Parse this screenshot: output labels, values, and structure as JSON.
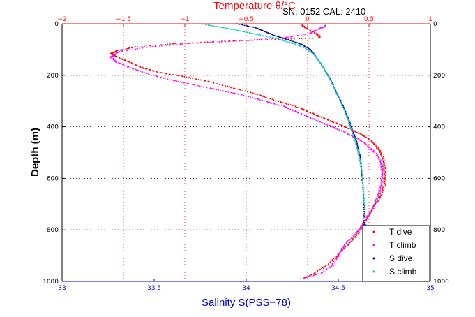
{
  "chart_data": {
    "type": "scatter",
    "top_axis_label": "Temperature θ/°C",
    "instrument_label": "SN: 0152  CAL: 2410",
    "xlabel_bottom": "Salinity S(PSS−78)",
    "ylabel": "Depth (m)",
    "temperature_axis": {
      "range": [
        -2,
        1
      ],
      "ticks": [
        "−2",
        "−1.5",
        "−1",
        "−0.5",
        "0",
        "0.5",
        "1"
      ],
      "tick_values": [
        -2,
        -1.5,
        -1,
        -0.5,
        0,
        0.5,
        1
      ]
    },
    "salinity_axis": {
      "range": [
        33,
        35
      ],
      "ticks": [
        "33",
        "33.5",
        "34",
        "34.5",
        "35"
      ],
      "tick_values": [
        33,
        33.5,
        34,
        34.5,
        35
      ]
    },
    "depth_axis": {
      "range": [
        0,
        1000
      ],
      "reversed": true,
      "ticks": [
        "0",
        "200",
        "400",
        "600",
        "800",
        "1000"
      ],
      "tick_values": [
        0,
        200,
        400,
        600,
        800,
        1000
      ]
    },
    "grid": true,
    "legend_position": "bottom-right",
    "series": [
      {
        "name": "T dive",
        "variable": "temperature",
        "color": "#ff0000",
        "points": [
          [
            -0.05,
            5
          ],
          [
            0.0,
            20
          ],
          [
            0.08,
            40
          ],
          [
            0.1,
            55
          ],
          [
            -0.3,
            62
          ],
          [
            -0.7,
            68
          ],
          [
            -1.1,
            78
          ],
          [
            -1.4,
            90
          ],
          [
            -1.55,
            105
          ],
          [
            -1.6,
            115
          ],
          [
            -1.55,
            130
          ],
          [
            -1.45,
            150
          ],
          [
            -1.35,
            170
          ],
          [
            -1.2,
            190
          ],
          [
            -1.0,
            205
          ],
          [
            -0.8,
            225
          ],
          [
            -0.6,
            250
          ],
          [
            -0.4,
            275
          ],
          [
            -0.25,
            300
          ],
          [
            -0.1,
            320
          ],
          [
            0.0,
            340
          ],
          [
            0.1,
            360
          ],
          [
            0.2,
            380
          ],
          [
            0.3,
            400
          ],
          [
            0.4,
            420
          ],
          [
            0.5,
            445
          ],
          [
            0.55,
            470
          ],
          [
            0.6,
            500
          ],
          [
            0.62,
            540
          ],
          [
            0.63,
            580
          ],
          [
            0.63,
            620
          ],
          [
            0.6,
            660
          ],
          [
            0.55,
            700
          ],
          [
            0.5,
            740
          ],
          [
            0.45,
            780
          ],
          [
            0.4,
            820
          ],
          [
            0.32,
            860
          ],
          [
            0.25,
            900
          ],
          [
            0.15,
            940
          ],
          [
            0.05,
            970
          ],
          [
            -0.05,
            990
          ]
        ]
      },
      {
        "name": "T climb",
        "variable": "temperature",
        "color": "#ff00ff",
        "points": [
          [
            -0.05,
            990
          ],
          [
            0.1,
            970
          ],
          [
            0.2,
            940
          ],
          [
            0.25,
            900
          ],
          [
            0.3,
            860
          ],
          [
            0.38,
            820
          ],
          [
            0.45,
            780
          ],
          [
            0.5,
            740
          ],
          [
            0.55,
            700
          ],
          [
            0.58,
            660
          ],
          [
            0.6,
            620
          ],
          [
            0.61,
            580
          ],
          [
            0.6,
            540
          ],
          [
            0.55,
            500
          ],
          [
            0.48,
            470
          ],
          [
            0.4,
            445
          ],
          [
            0.3,
            420
          ],
          [
            0.2,
            400
          ],
          [
            0.1,
            380
          ],
          [
            0.0,
            360
          ],
          [
            -0.1,
            340
          ],
          [
            -0.2,
            320
          ],
          [
            -0.35,
            300
          ],
          [
            -0.5,
            280
          ],
          [
            -0.7,
            260
          ],
          [
            -0.9,
            240
          ],
          [
            -1.1,
            220
          ],
          [
            -1.3,
            195
          ],
          [
            -1.45,
            170
          ],
          [
            -1.55,
            150
          ],
          [
            -1.6,
            130
          ],
          [
            -1.55,
            110
          ],
          [
            -1.3,
            90
          ],
          [
            -0.9,
            75
          ],
          [
            -0.5,
            65
          ],
          [
            -0.2,
            55
          ],
          [
            0.0,
            40
          ],
          [
            0.1,
            20
          ],
          [
            0.15,
            5
          ]
        ]
      },
      {
        "name": "S dive",
        "variable": "salinity",
        "color": "#000099",
        "points": [
          [
            33.95,
            0
          ],
          [
            34.05,
            15
          ],
          [
            34.1,
            30
          ],
          [
            34.15,
            45
          ],
          [
            34.22,
            60
          ],
          [
            34.3,
            80
          ],
          [
            34.35,
            100
          ],
          [
            34.38,
            130
          ],
          [
            34.42,
            170
          ],
          [
            34.46,
            220
          ],
          [
            34.5,
            280
          ],
          [
            34.54,
            340
          ],
          [
            34.57,
            400
          ],
          [
            34.6,
            460
          ],
          [
            34.62,
            520
          ],
          [
            34.63,
            600
          ],
          [
            34.64,
            700
          ],
          [
            34.64,
            800
          ],
          [
            34.64,
            900
          ],
          [
            34.64,
            1000
          ]
        ]
      },
      {
        "name": "S climb",
        "variable": "salinity",
        "color": "#00cccc",
        "points": [
          [
            33.75,
            0
          ],
          [
            33.85,
            12
          ],
          [
            33.95,
            25
          ],
          [
            34.05,
            40
          ],
          [
            34.15,
            55
          ],
          [
            34.25,
            75
          ],
          [
            34.32,
            95
          ],
          [
            34.37,
            120
          ],
          [
            34.41,
            160
          ],
          [
            34.45,
            210
          ],
          [
            34.49,
            270
          ],
          [
            34.53,
            330
          ],
          [
            34.56,
            390
          ],
          [
            34.59,
            450
          ],
          [
            34.61,
            510
          ],
          [
            34.63,
            580
          ],
          [
            34.64,
            680
          ],
          [
            34.65,
            780
          ],
          [
            34.64,
            880
          ],
          [
            34.64,
            990
          ]
        ]
      }
    ]
  }
}
